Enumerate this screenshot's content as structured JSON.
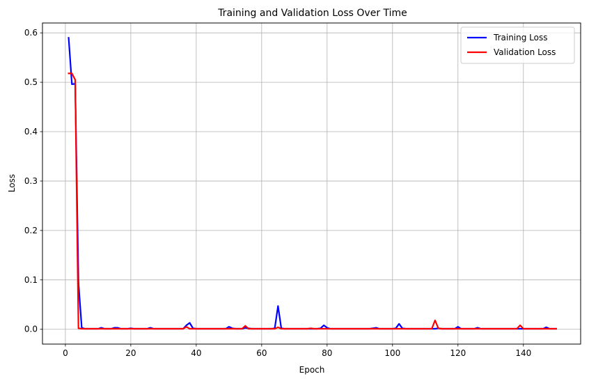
{
  "chart_data": {
    "type": "line",
    "title": "Training and Validation Loss Over Time",
    "xlabel": "Epoch",
    "ylabel": "Loss",
    "xlim": [
      -7,
      157.5
    ],
    "ylim": [
      -0.03,
      0.62
    ],
    "xticks": [
      0,
      20,
      40,
      60,
      80,
      100,
      120,
      140
    ],
    "yticks": [
      0.0,
      0.1,
      0.2,
      0.3,
      0.4,
      0.5,
      0.6
    ],
    "ytick_labels": [
      "0.0",
      "0.1",
      "0.2",
      "0.3",
      "0.4",
      "0.5",
      "0.6"
    ],
    "grid": true,
    "legend_position": "top-right",
    "series": [
      {
        "name": "Training Loss",
        "color": "#0000ff",
        "x": [
          1,
          2,
          3,
          4,
          5,
          6,
          7,
          8,
          9,
          10,
          11,
          12,
          13,
          14,
          15,
          16,
          17,
          18,
          19,
          20,
          21,
          22,
          23,
          24,
          25,
          26,
          27,
          28,
          29,
          30,
          31,
          32,
          33,
          34,
          35,
          36,
          37,
          38,
          39,
          40,
          41,
          42,
          43,
          44,
          45,
          46,
          47,
          48,
          49,
          50,
          51,
          52,
          53,
          54,
          55,
          56,
          57,
          58,
          59,
          60,
          61,
          62,
          63,
          64,
          65,
          66,
          67,
          68,
          69,
          70,
          71,
          72,
          73,
          74,
          75,
          76,
          77,
          78,
          79,
          80,
          81,
          82,
          83,
          84,
          85,
          86,
          87,
          88,
          89,
          90,
          91,
          92,
          93,
          94,
          95,
          96,
          97,
          98,
          99,
          100,
          101,
          102,
          103,
          104,
          105,
          106,
          107,
          108,
          109,
          110,
          111,
          112,
          113,
          114,
          115,
          116,
          117,
          118,
          119,
          120,
          121,
          122,
          123,
          124,
          125,
          126,
          127,
          128,
          129,
          130,
          131,
          132,
          133,
          134,
          135,
          136,
          137,
          138,
          139,
          140,
          141,
          142,
          143,
          144,
          145,
          146,
          147,
          148,
          149,
          150
        ],
        "y": [
          0.59,
          0.496,
          0.497,
          0.095,
          0.003,
          0.001,
          0.001,
          0.001,
          0.001,
          0.001,
          0.003,
          0.001,
          0.001,
          0.001,
          0.003,
          0.003,
          0.001,
          0.001,
          0.001,
          0.002,
          0.001,
          0.001,
          0.001,
          0.001,
          0.001,
          0.003,
          0.001,
          0.001,
          0.001,
          0.001,
          0.001,
          0.001,
          0.001,
          0.001,
          0.001,
          0.001,
          0.008,
          0.013,
          0.002,
          0.001,
          0.001,
          0.001,
          0.001,
          0.001,
          0.001,
          0.001,
          0.001,
          0.001,
          0.001,
          0.005,
          0.002,
          0.001,
          0.001,
          0.001,
          0.003,
          0.002,
          0.001,
          0.001,
          0.001,
          0.001,
          0.001,
          0.001,
          0.001,
          0.002,
          0.047,
          0.002,
          0.001,
          0.001,
          0.001,
          0.001,
          0.001,
          0.001,
          0.001,
          0.001,
          0.001,
          0.001,
          0.001,
          0.002,
          0.008,
          0.003,
          0.001,
          0.001,
          0.001,
          0.001,
          0.001,
          0.001,
          0.001,
          0.001,
          0.001,
          0.001,
          0.001,
          0.001,
          0.001,
          0.002,
          0.003,
          0.001,
          0.001,
          0.001,
          0.001,
          0.001,
          0.002,
          0.011,
          0.002,
          0.001,
          0.001,
          0.001,
          0.001,
          0.001,
          0.001,
          0.001,
          0.001,
          0.001,
          0.001,
          0.002,
          0.001,
          0.001,
          0.001,
          0.001,
          0.001,
          0.005,
          0.001,
          0.001,
          0.001,
          0.001,
          0.001,
          0.003,
          0.001,
          0.001,
          0.001,
          0.001,
          0.001,
          0.001,
          0.001,
          0.001,
          0.001,
          0.001,
          0.001,
          0.001,
          0.001,
          0.001,
          0.001,
          0.001,
          0.001,
          0.001,
          0.001,
          0.001,
          0.004,
          0.001,
          0.001,
          0.001
        ]
      },
      {
        "name": "Validation Loss",
        "color": "#ff0000",
        "x": [
          1,
          2,
          3,
          4,
          5,
          6,
          7,
          8,
          9,
          10,
          11,
          12,
          13,
          14,
          15,
          16,
          17,
          18,
          19,
          20,
          21,
          22,
          23,
          24,
          25,
          26,
          27,
          28,
          29,
          30,
          31,
          32,
          33,
          34,
          35,
          36,
          37,
          38,
          39,
          40,
          41,
          42,
          43,
          44,
          45,
          46,
          47,
          48,
          49,
          50,
          51,
          52,
          53,
          54,
          55,
          56,
          57,
          58,
          59,
          60,
          61,
          62,
          63,
          64,
          65,
          66,
          67,
          68,
          69,
          70,
          71,
          72,
          73,
          74,
          75,
          76,
          77,
          78,
          79,
          80,
          81,
          82,
          83,
          84,
          85,
          86,
          87,
          88,
          89,
          90,
          91,
          92,
          93,
          94,
          95,
          96,
          97,
          98,
          99,
          100,
          101,
          102,
          103,
          104,
          105,
          106,
          107,
          108,
          109,
          110,
          111,
          112,
          113,
          114,
          115,
          116,
          117,
          118,
          119,
          120,
          121,
          122,
          123,
          124,
          125,
          126,
          127,
          128,
          129,
          130,
          131,
          132,
          133,
          134,
          135,
          136,
          137,
          138,
          139,
          140,
          141,
          142,
          143,
          144,
          145,
          146,
          147,
          148,
          149,
          150
        ],
        "y": [
          0.518,
          0.518,
          0.505,
          0.002,
          0.001,
          0.001,
          0.001,
          0.001,
          0.001,
          0.001,
          0.001,
          0.001,
          0.001,
          0.001,
          0.001,
          0.001,
          0.001,
          0.001,
          0.001,
          0.001,
          0.001,
          0.001,
          0.001,
          0.001,
          0.001,
          0.001,
          0.001,
          0.001,
          0.001,
          0.001,
          0.001,
          0.001,
          0.001,
          0.001,
          0.001,
          0.001,
          0.005,
          0.001,
          0.001,
          0.001,
          0.001,
          0.001,
          0.001,
          0.001,
          0.001,
          0.001,
          0.001,
          0.001,
          0.001,
          0.001,
          0.001,
          0.001,
          0.001,
          0.001,
          0.007,
          0.001,
          0.001,
          0.001,
          0.001,
          0.001,
          0.001,
          0.001,
          0.001,
          0.001,
          0.004,
          0.001,
          0.001,
          0.001,
          0.001,
          0.001,
          0.001,
          0.001,
          0.001,
          0.001,
          0.002,
          0.001,
          0.001,
          0.001,
          0.001,
          0.001,
          0.001,
          0.001,
          0.001,
          0.001,
          0.001,
          0.001,
          0.001,
          0.001,
          0.001,
          0.001,
          0.001,
          0.001,
          0.001,
          0.001,
          0.001,
          0.001,
          0.001,
          0.001,
          0.001,
          0.001,
          0.001,
          0.001,
          0.001,
          0.001,
          0.001,
          0.001,
          0.001,
          0.001,
          0.001,
          0.001,
          0.001,
          0.001,
          0.018,
          0.002,
          0.001,
          0.001,
          0.001,
          0.001,
          0.001,
          0.001,
          0.001,
          0.001,
          0.001,
          0.001,
          0.001,
          0.001,
          0.001,
          0.001,
          0.001,
          0.001,
          0.001,
          0.001,
          0.001,
          0.001,
          0.001,
          0.001,
          0.001,
          0.001,
          0.008,
          0.001,
          0.001,
          0.001,
          0.001,
          0.001,
          0.001,
          0.001,
          0.001,
          0.001,
          0.001,
          0.001
        ]
      }
    ]
  }
}
